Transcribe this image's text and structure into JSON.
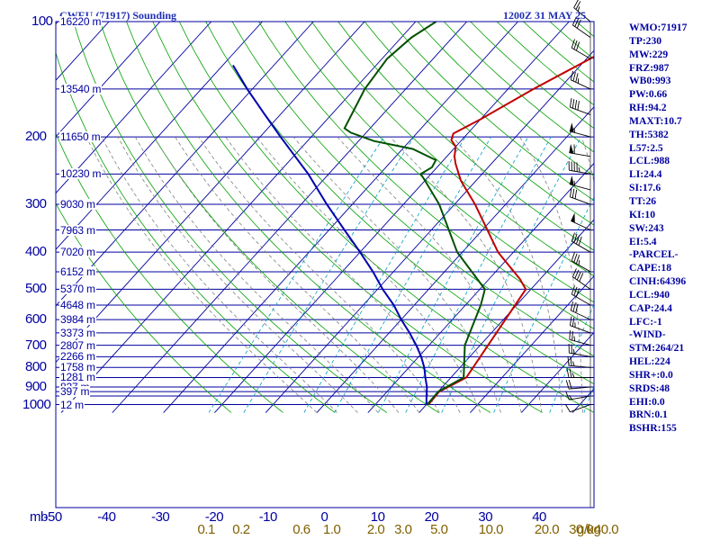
{
  "title_left": "CWEU (71917) Sounding",
  "title_right": "1200Z 31 MAY 25",
  "stats": [
    "WMO:71917",
    "TP:230",
    "MW:229",
    "FRZ:987",
    "WB0:993",
    "PW:0.66",
    "RH:94.2",
    "MAXT:10.7",
    "TH:5382",
    "L57:2.5",
    "LCL:988",
    "LI:24.4",
    "SI:17.6",
    "TT:26",
    "KI:10",
    "SW:243",
    "EI:5.4",
    "-PARCEL-",
    "CAPE:18",
    "CINH:64396",
    "LCL:940",
    "CAP:24.4",
    "LFC:-1",
    "-WIND-",
    "STM:264/21",
    "HEL:224",
    "SHR+:0.0",
    "SRDS:48",
    "EHI:0.0",
    "BRN:0.1",
    "BSHR:155"
  ],
  "chart_data": {
    "type": "line",
    "subtype": "skew-T log-P sounding",
    "x_axis": {
      "unit_label": "mb",
      "temperature_ticks": [
        -50,
        -40,
        -30,
        -20,
        -10,
        0,
        10,
        20,
        30,
        40
      ],
      "xlim": [
        -50,
        50
      ],
      "mixing_ratio_ticks": [
        0.1,
        0.2,
        0.6,
        1.0,
        2.0,
        3.0,
        5.0,
        10.0,
        20.0,
        30.0,
        40.0
      ],
      "mixing_ratio_unit": "g/kg"
    },
    "y_axis": {
      "scale": "log",
      "pressure_ticks": [
        100,
        200,
        300,
        400,
        500,
        600,
        700,
        800,
        900,
        1000
      ],
      "ylim": [
        1050,
        100
      ]
    },
    "height_labels": [
      {
        "p": 100,
        "label": "16220 m"
      },
      {
        "p": 150,
        "label": "13540 m"
      },
      {
        "p": 200,
        "label": "11650 m"
      },
      {
        "p": 250,
        "label": "10230 m"
      },
      {
        "p": 300,
        "label": "9030 m"
      },
      {
        "p": 350,
        "label": "7963 m"
      },
      {
        "p": 400,
        "label": "7020 m"
      },
      {
        "p": 450,
        "label": "6152 m"
      },
      {
        "p": 500,
        "label": "5370 m"
      },
      {
        "p": 550,
        "label": "4648 m"
      },
      {
        "p": 600,
        "label": "3984 m"
      },
      {
        "p": 650,
        "label": "3373 m"
      },
      {
        "p": 700,
        "label": "2807 m"
      },
      {
        "p": 750,
        "label": "2266 m"
      },
      {
        "p": 800,
        "label": "1758 m"
      },
      {
        "p": 850,
        "label": "1281 m"
      },
      {
        "p": 900,
        "label": "827 m"
      },
      {
        "p": 925,
        "label": "397 m"
      },
      {
        "p": 1000,
        "label": "12 m"
      }
    ],
    "series": [
      {
        "color": "#c00000",
        "points": [
          [
            1000,
            0.4
          ],
          [
            925,
            0.2
          ],
          [
            850,
            3.0
          ],
          [
            500,
            -1.0
          ],
          [
            470,
            -4.0
          ],
          [
            400,
            -13.0
          ],
          [
            300,
            -26.0
          ],
          [
            260,
            -33.0
          ],
          [
            235,
            -37.0
          ],
          [
            225,
            -38.5
          ],
          [
            212,
            -40.0
          ],
          [
            204,
            -42.0
          ],
          [
            196,
            -42.8
          ],
          [
            180,
            -40.0
          ],
          [
            150,
            -35.0
          ],
          [
            120,
            -28.0
          ],
          [
            100,
            -24.0
          ]
        ]
      },
      {
        "color": "#005000",
        "points": [
          [
            1000,
            0.2
          ],
          [
            925,
            0.0
          ],
          [
            850,
            2.5
          ],
          [
            700,
            -3.0
          ],
          [
            550,
            -7.0
          ],
          [
            500,
            -9.0
          ],
          [
            400,
            -21.0
          ],
          [
            300,
            -33.0
          ],
          [
            260,
            -40.0
          ],
          [
            250,
            -42.0
          ],
          [
            240,
            -41.0
          ],
          [
            230,
            -41.5
          ],
          [
            215,
            -48.0
          ],
          [
            205,
            -57.0
          ],
          [
            195,
            -63.0
          ],
          [
            190,
            -65.0
          ],
          [
            150,
            -68.0
          ],
          [
            125,
            -69.0
          ],
          [
            110,
            -68.0
          ],
          [
            100,
            -66.0
          ]
        ]
      },
      {
        "color": "#0000b0",
        "points": [
          [
            1000,
            0.0
          ],
          [
            950,
            -1.5
          ],
          [
            900,
            -3.0
          ],
          [
            850,
            -5.0
          ],
          [
            800,
            -7.0
          ],
          [
            750,
            -9.5
          ],
          [
            700,
            -12.5
          ],
          [
            650,
            -16.0
          ],
          [
            600,
            -20.0
          ],
          [
            550,
            -24.0
          ],
          [
            500,
            -29.0
          ],
          [
            450,
            -34.0
          ],
          [
            400,
            -40.0
          ],
          [
            350,
            -47.0
          ],
          [
            300,
            -55.0
          ],
          [
            250,
            -64.0
          ],
          [
            200,
            -76.0
          ],
          [
            175,
            -83.0
          ],
          [
            150,
            -91.0
          ],
          [
            130,
            -98.0
          ]
        ]
      }
    ],
    "wind_barbs": [
      {
        "p": 1000,
        "dir": 250,
        "spd": 10
      },
      {
        "p": 950,
        "dir": 260,
        "spd": 15
      },
      {
        "p": 900,
        "dir": 265,
        "spd": 20
      },
      {
        "p": 850,
        "dir": 270,
        "spd": 25
      },
      {
        "p": 800,
        "dir": 275,
        "spd": 25
      },
      {
        "p": 750,
        "dir": 280,
        "spd": 25
      },
      {
        "p": 700,
        "dir": 285,
        "spd": 25
      },
      {
        "p": 650,
        "dir": 290,
        "spd": 25
      },
      {
        "p": 600,
        "dir": 295,
        "spd": 30
      },
      {
        "p": 550,
        "dir": 300,
        "spd": 30
      },
      {
        "p": 500,
        "dir": 305,
        "spd": 40
      },
      {
        "p": 450,
        "dir": 300,
        "spd": 35
      },
      {
        "p": 400,
        "dir": 300,
        "spd": 40
      },
      {
        "p": 350,
        "dir": 295,
        "spd": 50
      },
      {
        "p": 300,
        "dir": 290,
        "spd": 30
      },
      {
        "p": 275,
        "dir": 285,
        "spd": 55
      },
      {
        "p": 250,
        "dir": 280,
        "spd": 45
      },
      {
        "p": 225,
        "dir": 280,
        "spd": 60
      },
      {
        "p": 200,
        "dir": 285,
        "spd": 55
      },
      {
        "p": 175,
        "dir": 290,
        "spd": 40
      },
      {
        "p": 150,
        "dir": 295,
        "spd": 35
      },
      {
        "p": 125,
        "dir": 300,
        "spd": 30
      },
      {
        "p": 110,
        "dir": 305,
        "spd": 30
      },
      {
        "p": 100,
        "dir": 310,
        "spd": 25
      }
    ],
    "colors": {
      "isobars": "#0000a0",
      "isotherms": "#0000a0",
      "dry_adiabats": "#00a000",
      "moist_adiabats": "#808080",
      "mixing_ratio": "#00a0c0",
      "frame": "#0000a0"
    }
  }
}
